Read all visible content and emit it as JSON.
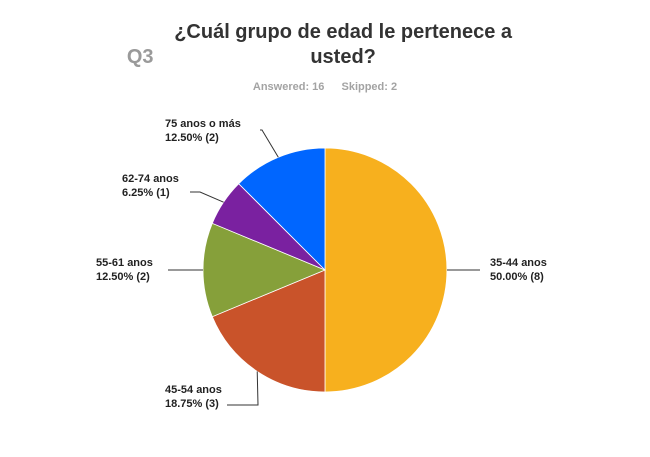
{
  "header": {
    "question_number": "Q3",
    "question_text": "¿Cuál grupo de edad le pertenece a usted?"
  },
  "stats": {
    "answered": "Answered: 16",
    "skipped": "Skipped: 2"
  },
  "chart_data": {
    "type": "pie",
    "categories": [
      "35-44 anos",
      "45-54 anos",
      "55-61 anos",
      "62-74 anos",
      "75 anos o más"
    ],
    "values": [
      8,
      3,
      2,
      1,
      2
    ],
    "percent_labels": [
      "50.00% (8)",
      "18.75% (3)",
      "12.50% (2)",
      "6.25% (1)",
      "12.50% (2)"
    ],
    "colors": [
      "#F7B01E",
      "#C9532A",
      "#86A03A",
      "#7A21A0",
      "#0066FF"
    ],
    "title": "¿Cuál grupo de edad le pertenece a usted?",
    "legend": "none"
  }
}
